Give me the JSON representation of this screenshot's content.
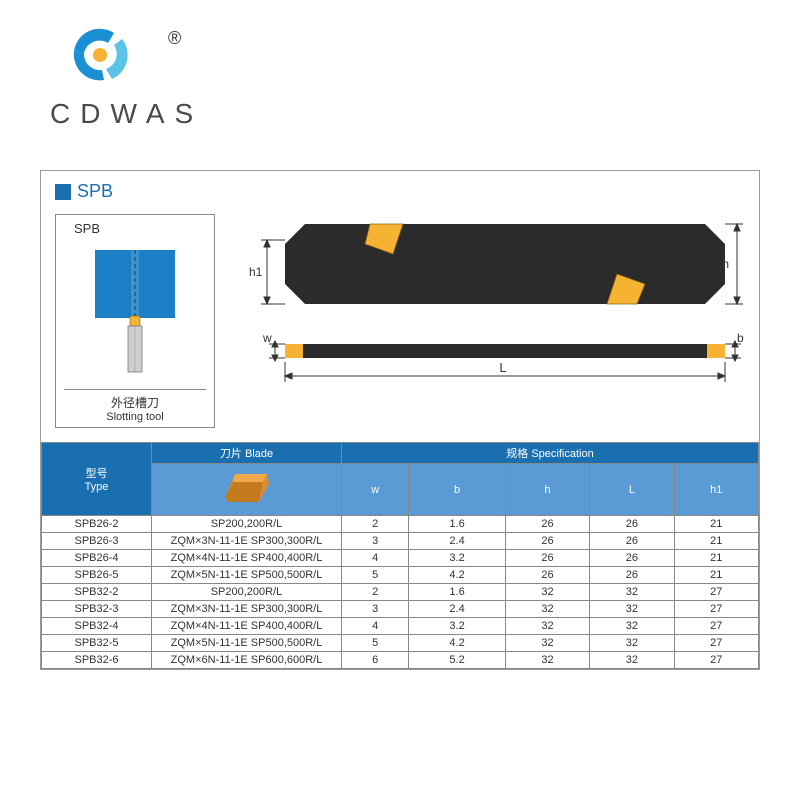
{
  "brand": {
    "name": "CDWAS",
    "logo_colors": {
      "outer1": "#1a8fd4",
      "outer2": "#5bc4e6",
      "center": "#f6b233"
    },
    "reg_mark": "®"
  },
  "section": {
    "code": "SPB",
    "accent_color": "#1a6fb0"
  },
  "thumb": {
    "label": "SPB",
    "caption_cn": "外径槽刀",
    "caption_en": "Slotting tool",
    "work_color": "#1a7fc4",
    "tool_color": "#bfbfbf",
    "insert_color": "#f6b233"
  },
  "main_diagram": {
    "body_color": "#2b2b2b",
    "insert_color": "#f6b233",
    "dim_color": "#333333",
    "labels": {
      "h1": "h1",
      "h": "h",
      "w": "w",
      "L": "L",
      "b": "b"
    }
  },
  "table": {
    "header_bg_primary": "#1a6fb0",
    "header_bg_secondary": "#5b9bd5",
    "headers": {
      "type_cn": "型号",
      "type_en": "Type",
      "blade_cn": "刀片",
      "blade_en": "Blade",
      "spec_cn": "规格",
      "spec_en": "Specification"
    },
    "columns": [
      "w",
      "b",
      "h",
      "L",
      "h1"
    ],
    "rows": [
      {
        "type": "SPB26-2",
        "blade": "SP200,200R/L",
        "w": "2",
        "b": "1.6",
        "h": "26",
        "L": "26",
        "h1": "21"
      },
      {
        "type": "SPB26-3",
        "blade": "ZQM×3N-11-1E SP300,300R/L",
        "w": "3",
        "b": "2.4",
        "h": "26",
        "L": "26",
        "h1": "21"
      },
      {
        "type": "SPB26-4",
        "blade": "ZQM×4N-11-1E SP400,400R/L",
        "w": "4",
        "b": "3.2",
        "h": "26",
        "L": "26",
        "h1": "21"
      },
      {
        "type": "SPB26-5",
        "blade": "ZQM×5N-11-1E SP500,500R/L",
        "w": "5",
        "b": "4.2",
        "h": "26",
        "L": "26",
        "h1": "21"
      },
      {
        "type": "SPB32-2",
        "blade": "SP200,200R/L",
        "w": "2",
        "b": "1.6",
        "h": "32",
        "L": "32",
        "h1": "27"
      },
      {
        "type": "SPB32-3",
        "blade": "ZQM×3N-11-1E SP300,300R/L",
        "w": "3",
        "b": "2.4",
        "h": "32",
        "L": "32",
        "h1": "27"
      },
      {
        "type": "SPB32-4",
        "blade": "ZQM×4N-11-1E SP400,400R/L",
        "w": "4",
        "b": "3.2",
        "h": "32",
        "L": "32",
        "h1": "27"
      },
      {
        "type": "SPB32-5",
        "blade": "ZQM×5N-11-1E SP500,500R/L",
        "w": "5",
        "b": "4.2",
        "h": "32",
        "L": "32",
        "h1": "27"
      },
      {
        "type": "SPB32-6",
        "blade": "ZQM×6N-11-1E SP600,600R/L",
        "w": "6",
        "b": "5.2",
        "h": "32",
        "L": "32",
        "h1": "27"
      }
    ]
  }
}
